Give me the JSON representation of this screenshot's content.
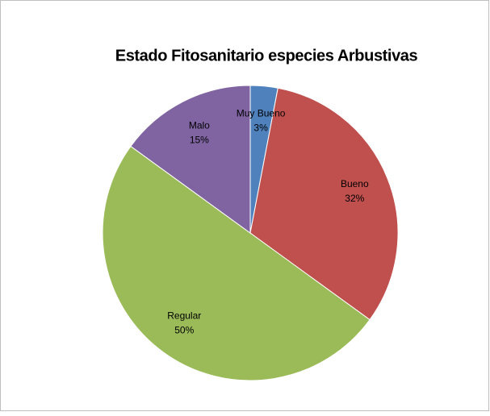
{
  "chart_data": {
    "type": "pie",
    "title": "Estado Fitosanitario especies Arbustivas",
    "categories": [
      "Muy Bueno",
      "Bueno",
      "Regular",
      "Malo"
    ],
    "values": [
      3,
      32,
      50,
      15
    ],
    "value_labels": [
      "3%",
      "32%",
      "50%",
      "15%"
    ],
    "colors": [
      "#4f81bd",
      "#c0504d",
      "#9bbb59",
      "#8064a2"
    ]
  }
}
